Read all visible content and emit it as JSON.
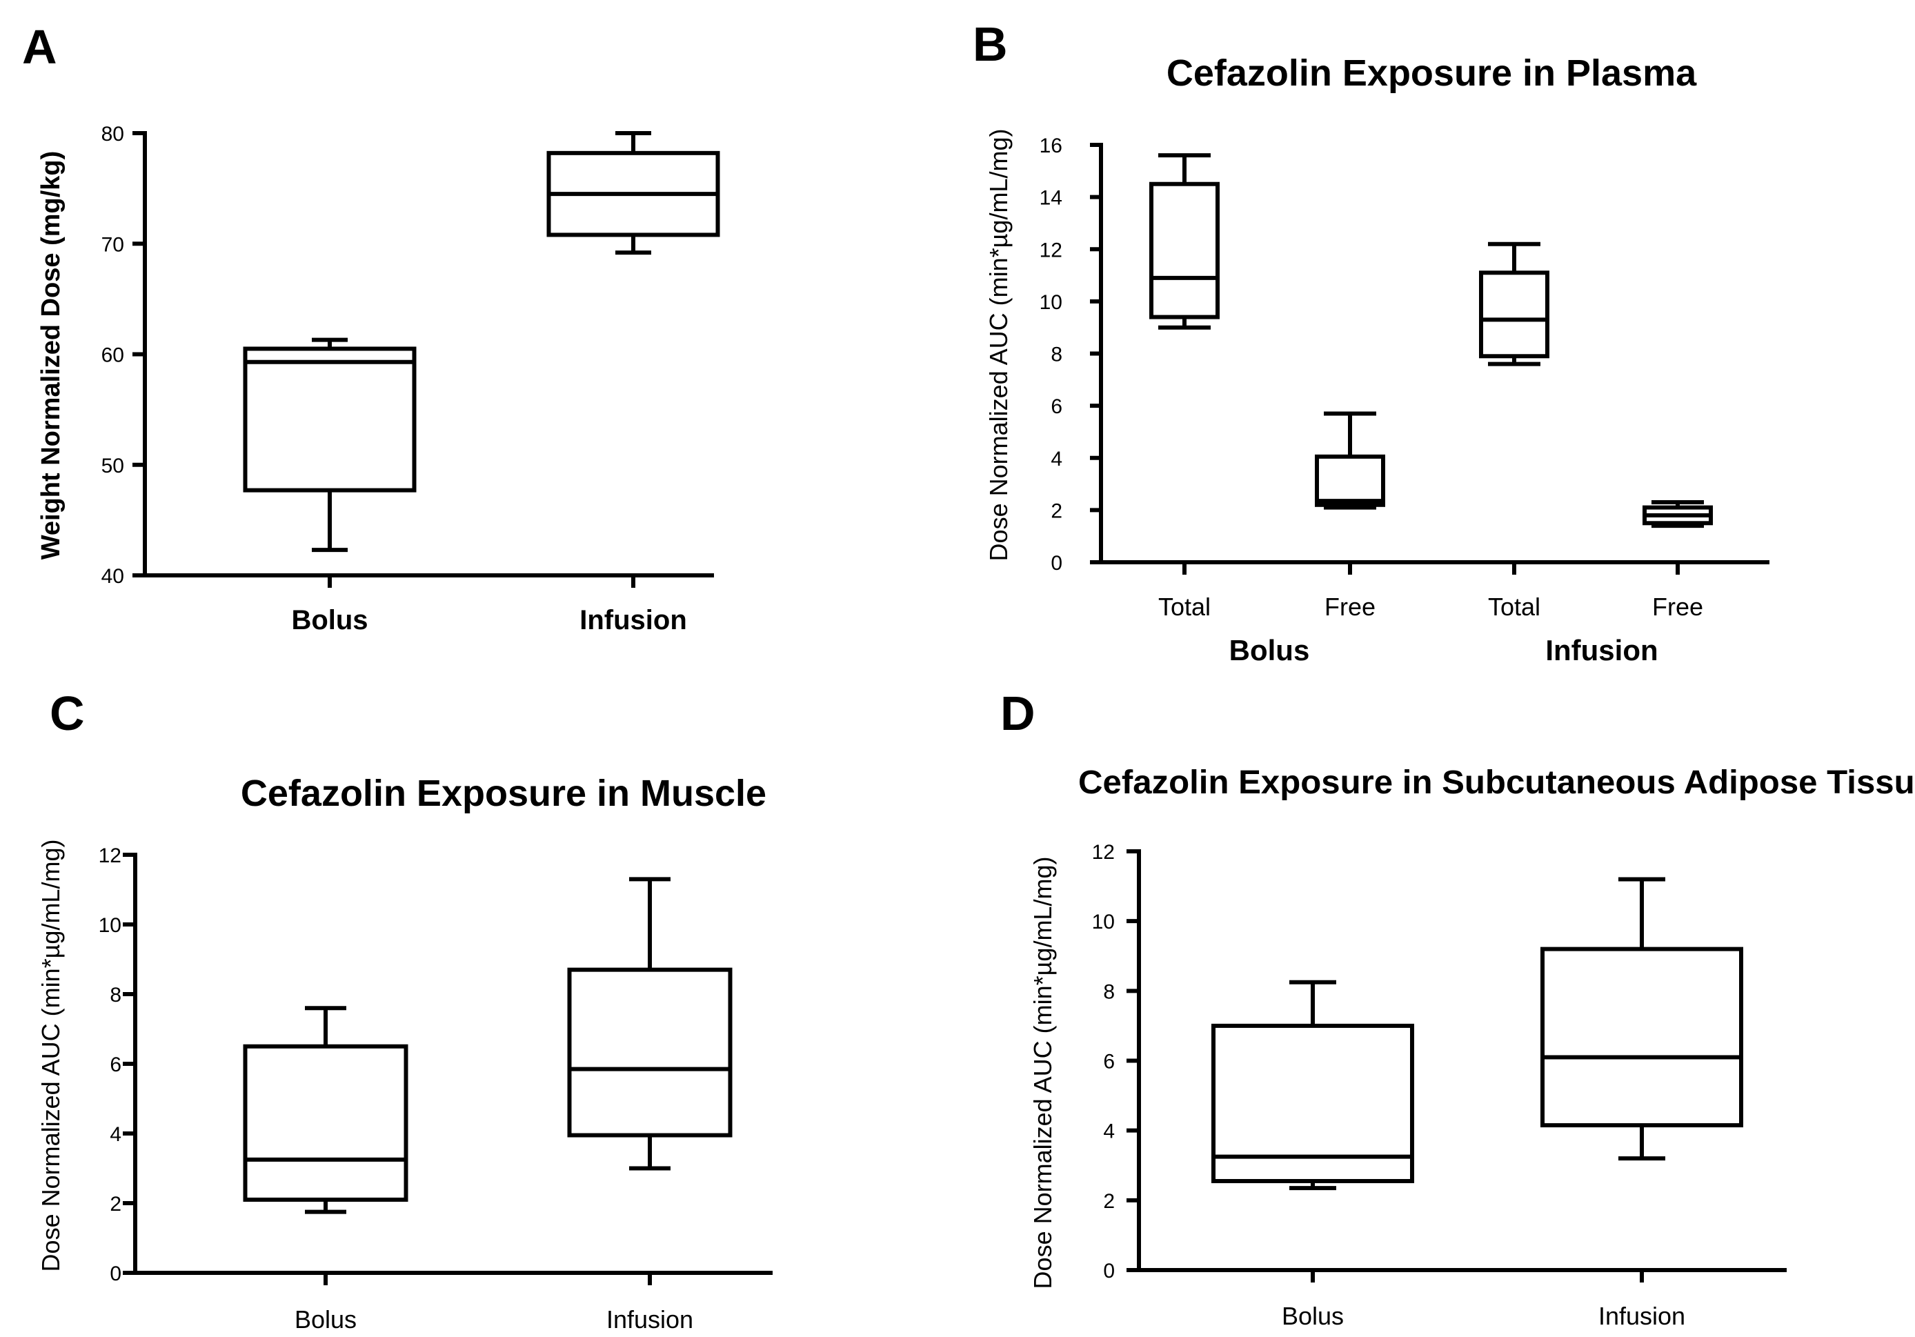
{
  "chart_data": [
    {
      "panel": "A",
      "type": "boxplot",
      "title": "",
      "xlabel": "",
      "ylabel": "Weight Normalized Dose (mg/kg)",
      "ylim": [
        40,
        80
      ],
      "yticks": [
        40,
        50,
        60,
        70,
        80
      ],
      "categories": [
        "Bolus",
        "Infusion"
      ],
      "boxes": [
        {
          "category": "Bolus",
          "min": 42.3,
          "q1": 47.7,
          "median": 59.3,
          "q3": 60.5,
          "max": 61.3
        },
        {
          "category": "Infusion",
          "min": 69.2,
          "q1": 70.8,
          "median": 74.5,
          "q3": 78.2,
          "max": 80.0
        }
      ]
    },
    {
      "panel": "B",
      "type": "boxplot",
      "title": "Cefazolin Exposure in Plasma",
      "xlabel": "",
      "ylabel": "Dose Normalized AUC (min*µg/mL/mg)",
      "ylim": [
        0,
        16
      ],
      "yticks": [
        0,
        2,
        4,
        6,
        8,
        10,
        12,
        14,
        16
      ],
      "categories": [
        "Total",
        "Free",
        "Total",
        "Free"
      ],
      "groups": [
        "Bolus",
        "Infusion"
      ],
      "boxes": [
        {
          "category": "Total",
          "group": "Bolus",
          "min": 9.0,
          "q1": 9.4,
          "median": 10.9,
          "q3": 14.5,
          "max": 15.6
        },
        {
          "category": "Free",
          "group": "Bolus",
          "min": 2.1,
          "q1": 2.2,
          "median": 2.35,
          "q3": 4.05,
          "max": 5.7
        },
        {
          "category": "Total",
          "group": "Infusion",
          "min": 7.6,
          "q1": 7.9,
          "median": 9.3,
          "q3": 11.1,
          "max": 12.2
        },
        {
          "category": "Free",
          "group": "Infusion",
          "min": 1.4,
          "q1": 1.5,
          "median": 1.8,
          "q3": 2.1,
          "max": 2.3
        }
      ]
    },
    {
      "panel": "C",
      "type": "boxplot",
      "title": "Cefazolin Exposure in Muscle",
      "xlabel": "",
      "ylabel": "Dose Normalized AUC (min*µg/mL/mg)",
      "ylim": [
        0,
        12
      ],
      "yticks": [
        0,
        2,
        4,
        6,
        8,
        10,
        12
      ],
      "categories": [
        "Bolus",
        "Infusion"
      ],
      "boxes": [
        {
          "category": "Bolus",
          "min": 1.75,
          "q1": 2.1,
          "median": 3.25,
          "q3": 6.5,
          "max": 7.6
        },
        {
          "category": "Infusion",
          "min": 3.0,
          "q1": 3.95,
          "median": 5.85,
          "q3": 8.7,
          "max": 11.3
        }
      ]
    },
    {
      "panel": "D",
      "type": "boxplot",
      "title": "Cefazolin Exposure in Subcutaneous Adipose Tissue",
      "xlabel": "",
      "ylabel": "Dose Normalized AUC (min*µg/mL/mg)",
      "ylim": [
        0,
        12
      ],
      "yticks": [
        0,
        2,
        4,
        6,
        8,
        10,
        12
      ],
      "categories": [
        "Bolus",
        "Infusion"
      ],
      "boxes": [
        {
          "category": "Bolus",
          "min": 2.35,
          "q1": 2.55,
          "median": 3.25,
          "q3": 7.0,
          "max": 8.25
        },
        {
          "category": "Infusion",
          "min": 3.2,
          "q1": 4.15,
          "median": 6.1,
          "q3": 9.2,
          "max": 11.2
        }
      ]
    }
  ]
}
